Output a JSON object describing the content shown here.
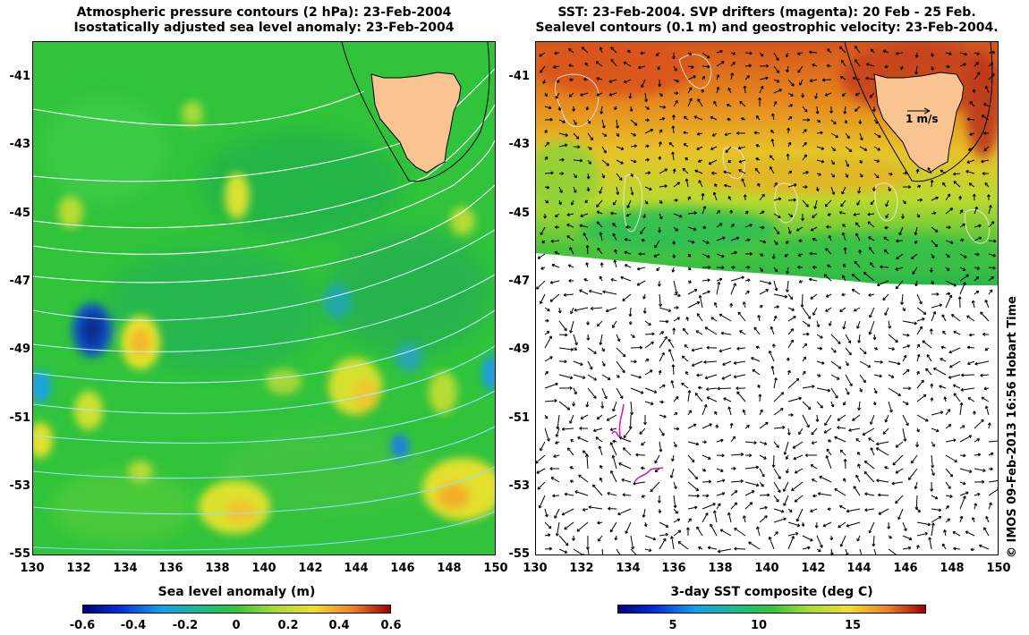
{
  "left_panel": {
    "title_line1": "Atmospheric pressure contours (2 hPa): 23-Feb-2004",
    "title_line2": "Isostatically adjusted sea level anomaly: 23-Feb-2004",
    "y_ticks": [
      "-41",
      "-43",
      "-45",
      "-47",
      "-49",
      "-51",
      "-53",
      "-55"
    ],
    "x_ticks": [
      "130",
      "132",
      "134",
      "136",
      "138",
      "140",
      "142",
      "144",
      "146",
      "148",
      "150"
    ],
    "colorbar_title": "Sea level anomaly (m)",
    "colorbar_ticks": [
      "-0.6",
      "-0.4",
      "-0.2",
      "0",
      "0.2",
      "0.4",
      "0.6"
    ],
    "colorbar_range": [
      -0.6,
      0.6
    ]
  },
  "right_panel": {
    "title_line1": "SST: 23-Feb-2004. SVP drifters (magenta): 20 Feb - 25 Feb.",
    "title_line2": "Sealevel contours (0.1 m) and geostrophic velocity: 23-Feb-2004.",
    "y_ticks": [
      "-41",
      "-43",
      "-45",
      "-47",
      "-49",
      "-51",
      "-53",
      "-55"
    ],
    "x_ticks": [
      "130",
      "132",
      "134",
      "136",
      "138",
      "140",
      "142",
      "144",
      "146",
      "148",
      "150"
    ],
    "scale_arrow_label": "1 m/s",
    "colorbar_title": "3-day SST composite (deg C)",
    "colorbar_ticks": [
      "5",
      "10",
      "15"
    ],
    "colorbar_range": [
      1,
      19
    ]
  },
  "credit": "© IMOS 09-Feb-2013 16:56 Hobart Time",
  "map_extent": {
    "lon": [
      130,
      150
    ],
    "lat": [
      -55,
      -40.2
    ]
  },
  "colors": {
    "ocean_green": "#2fc23a",
    "land": "#f9c48f",
    "sst_warm": "#e2661a",
    "drifter": "#d01ec8"
  }
}
